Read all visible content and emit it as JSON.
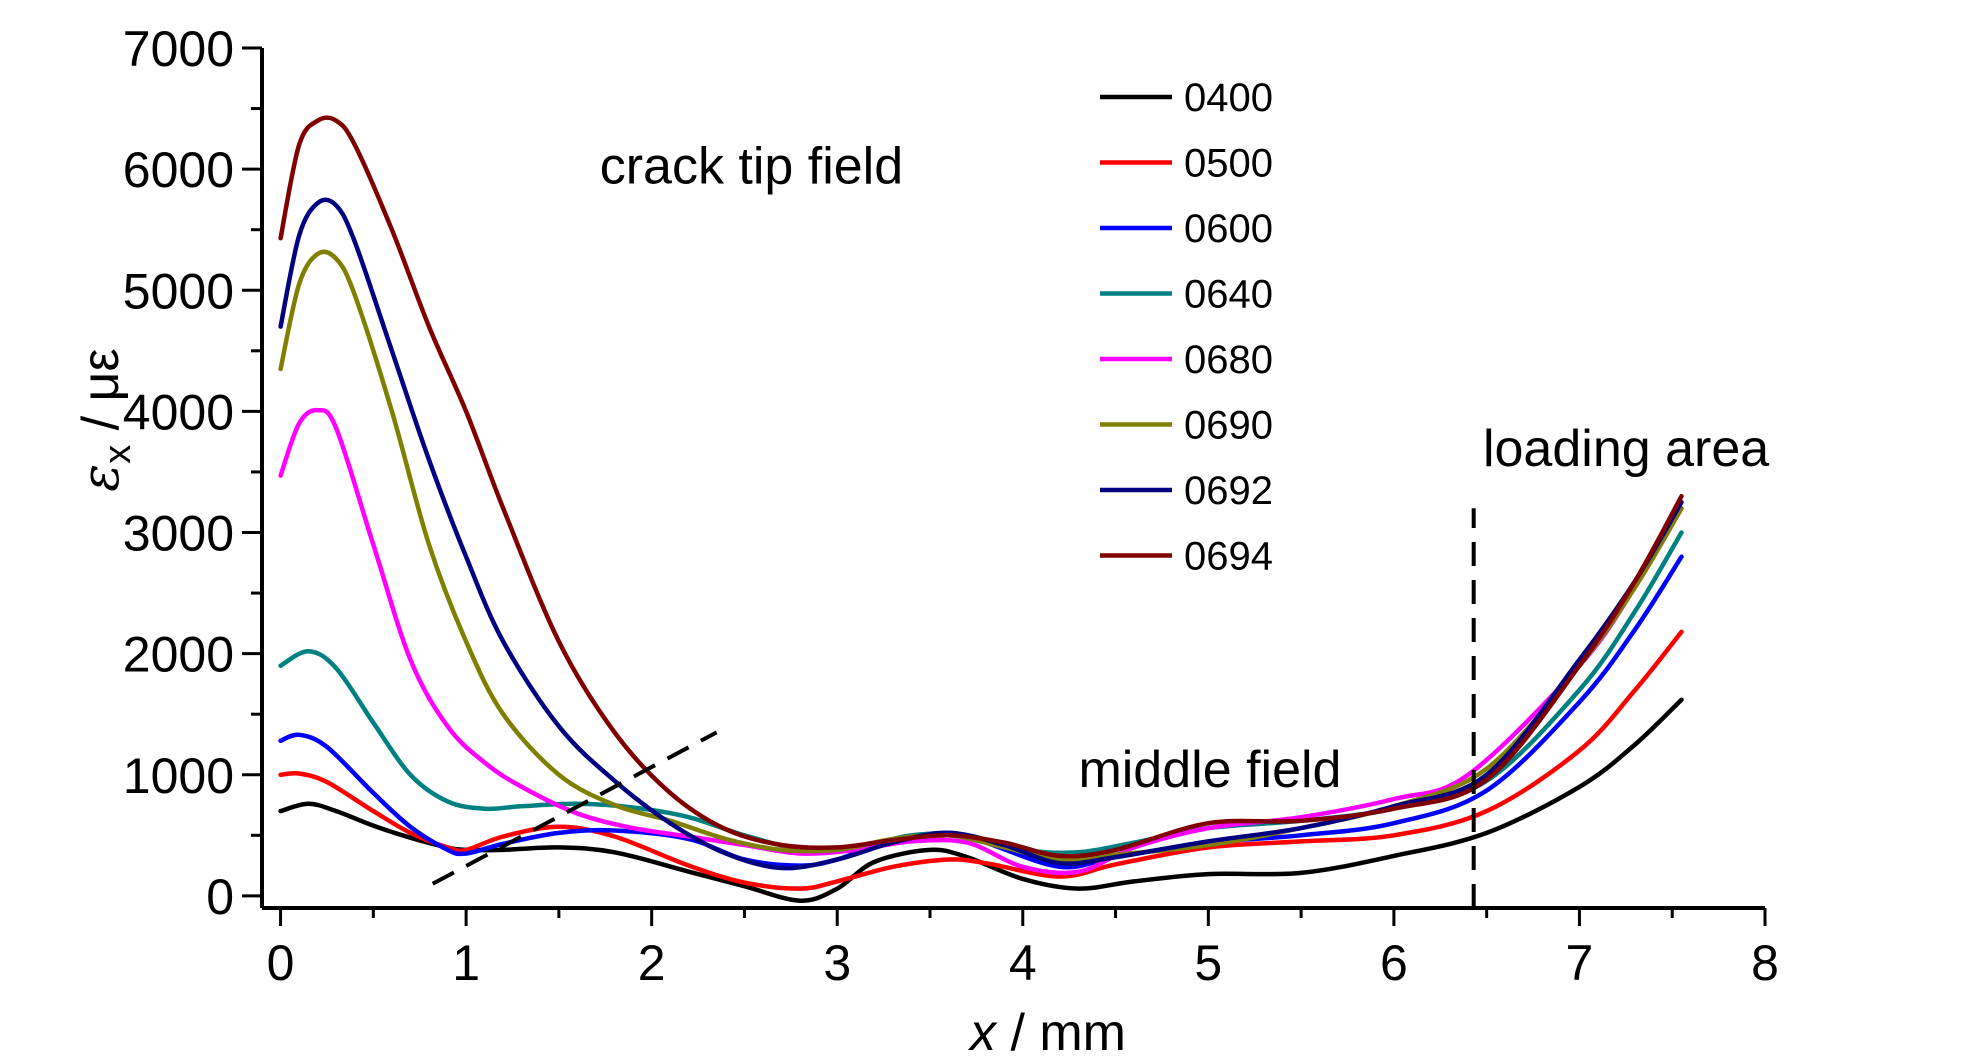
{
  "chart_data": {
    "type": "line",
    "xlabel": "x / mm",
    "xlabel_var": "x",
    "xlabel_unit": " / mm",
    "ylabel": "εx / με",
    "ylabel_var": "ε",
    "ylabel_sub": "x",
    "ylabel_unit": " / με",
    "xlim": [
      -0.1,
      8
    ],
    "ylim": [
      -100,
      7000
    ],
    "xticks": [
      0,
      1,
      2,
      3,
      4,
      5,
      6,
      7,
      8
    ],
    "xtick_labels": [
      "0",
      "1",
      "2",
      "3",
      "4",
      "5",
      "6",
      "7",
      "8"
    ],
    "yticks": [
      0,
      1000,
      2000,
      3000,
      4000,
      5000,
      6000,
      7000
    ],
    "ytick_labels": [
      "0",
      "1000",
      "2000",
      "3000",
      "4000",
      "5000",
      "6000",
      "7000"
    ],
    "grid": false,
    "legend_position": "top-center",
    "annotations": [
      {
        "text": "crack tip field",
        "x": 1.72,
        "y": 5880
      },
      {
        "text": "middle field",
        "x": 4.3,
        "y": 900
      },
      {
        "text": "loading area",
        "x": 6.48,
        "y": 3550
      }
    ],
    "reference_lines": [
      {
        "style": "dashed",
        "x": [
          6.43,
          6.43
        ],
        "y": [
          -100,
          3200
        ]
      },
      {
        "style": "dashed",
        "x": [
          0.82,
          2.35
        ],
        "y": [
          100,
          1350
        ]
      }
    ],
    "series": [
      {
        "name": "0400",
        "color": "#000000",
        "x": [
          0,
          0.15,
          0.3,
          0.5,
          0.7,
          0.9,
          1.0,
          1.2,
          1.5,
          1.8,
          2.2,
          2.5,
          2.8,
          3.0,
          3.2,
          3.5,
          3.7,
          4.0,
          4.3,
          4.6,
          5.0,
          5.5,
          6.0,
          6.5,
          7.0,
          7.3,
          7.55
        ],
        "y": [
          700,
          760,
          700,
          580,
          480,
          400,
          380,
          380,
          400,
          360,
          200,
          80,
          -40,
          60,
          280,
          380,
          320,
          140,
          60,
          120,
          180,
          190,
          330,
          520,
          900,
          1250,
          1620
        ]
      },
      {
        "name": "0500",
        "color": "#ff0000",
        "x": [
          0,
          0.1,
          0.25,
          0.5,
          0.7,
          0.9,
          1.0,
          1.2,
          1.5,
          1.8,
          2.2,
          2.5,
          2.8,
          3.0,
          3.3,
          3.6,
          3.8,
          4.2,
          4.5,
          5.0,
          5.5,
          6.0,
          6.5,
          7.0,
          7.3,
          7.55
        ],
        "y": [
          1000,
          1010,
          940,
          700,
          520,
          400,
          380,
          490,
          570,
          490,
          250,
          110,
          60,
          120,
          240,
          300,
          270,
          160,
          260,
          400,
          450,
          500,
          700,
          1200,
          1700,
          2180
        ]
      },
      {
        "name": "0600",
        "color": "#0000ff",
        "x": [
          0,
          0.1,
          0.25,
          0.5,
          0.7,
          0.9,
          1.0,
          1.2,
          1.5,
          1.8,
          2.2,
          2.5,
          2.8,
          3.0,
          3.3,
          3.6,
          3.8,
          4.2,
          4.5,
          5.0,
          5.5,
          6.0,
          6.5,
          7.0,
          7.3,
          7.55
        ],
        "y": [
          1280,
          1330,
          1230,
          850,
          570,
          380,
          350,
          430,
          520,
          540,
          470,
          300,
          250,
          300,
          460,
          520,
          440,
          240,
          320,
          440,
          500,
          600,
          870,
          1600,
          2200,
          2800
        ]
      },
      {
        "name": "0640",
        "color": "#008080",
        "x": [
          0,
          0.15,
          0.3,
          0.5,
          0.7,
          0.9,
          1.1,
          1.3,
          1.6,
          1.9,
          2.2,
          2.5,
          2.8,
          3.1,
          3.4,
          3.7,
          4.0,
          4.3,
          4.6,
          5.0,
          5.5,
          6.0,
          6.5,
          7.0,
          7.3,
          7.55
        ],
        "y": [
          1900,
          2020,
          1880,
          1430,
          1000,
          780,
          720,
          740,
          760,
          730,
          650,
          500,
          390,
          400,
          500,
          500,
          380,
          360,
          440,
          560,
          620,
          720,
          950,
          1700,
          2350,
          3000
        ]
      },
      {
        "name": "0680",
        "color": "#ff00ff",
        "x": [
          0,
          0.1,
          0.2,
          0.3,
          0.5,
          0.7,
          0.9,
          1.1,
          1.3,
          1.6,
          1.9,
          2.2,
          2.5,
          2.8,
          3.1,
          3.4,
          3.7,
          4.0,
          4.3,
          4.6,
          5.0,
          5.5,
          6.0,
          6.4,
          7.0,
          7.3,
          7.55
        ],
        "y": [
          3470,
          3900,
          4010,
          3860,
          2900,
          1950,
          1400,
          1100,
          900,
          680,
          560,
          490,
          420,
          350,
          380,
          450,
          440,
          240,
          200,
          400,
          560,
          650,
          800,
          1000,
          1900,
          2550,
          3200
        ]
      },
      {
        "name": "0690",
        "color": "#808000",
        "x": [
          0,
          0.1,
          0.2,
          0.3,
          0.4,
          0.6,
          0.8,
          1.0,
          1.2,
          1.5,
          1.8,
          2.1,
          2.4,
          2.7,
          3.0,
          3.3,
          3.6,
          3.9,
          4.2,
          4.5,
          5.0,
          5.5,
          6.0,
          6.5,
          7.0,
          7.3,
          7.55
        ],
        "y": [
          4350,
          5050,
          5300,
          5260,
          4960,
          4000,
          2900,
          2100,
          1500,
          1000,
          750,
          620,
          470,
          380,
          380,
          470,
          500,
          400,
          300,
          340,
          420,
          560,
          740,
          1050,
          1900,
          2550,
          3200
        ]
      },
      {
        "name": "0692",
        "color": "#000080",
        "x": [
          0,
          0.1,
          0.2,
          0.3,
          0.4,
          0.6,
          0.8,
          1.0,
          1.2,
          1.5,
          1.8,
          2.1,
          2.4,
          2.7,
          3.0,
          3.3,
          3.6,
          3.9,
          4.2,
          4.5,
          5.0,
          5.5,
          6.0,
          6.5,
          7.0,
          7.3,
          7.55
        ],
        "y": [
          4700,
          5450,
          5720,
          5700,
          5400,
          4500,
          3600,
          2800,
          2100,
          1400,
          950,
          600,
          350,
          230,
          300,
          440,
          520,
          420,
          270,
          320,
          450,
          560,
          740,
          1000,
          1950,
          2600,
          3250
        ]
      },
      {
        "name": "0694",
        "color": "#800000",
        "x": [
          0,
          0.1,
          0.2,
          0.3,
          0.4,
          0.6,
          0.8,
          1.0,
          1.2,
          1.5,
          1.8,
          2.1,
          2.4,
          2.7,
          3.0,
          3.3,
          3.6,
          3.9,
          4.2,
          4.5,
          5.0,
          5.5,
          6.0,
          6.5,
          7.0,
          7.3,
          7.55
        ],
        "y": [
          5430,
          6200,
          6400,
          6400,
          6200,
          5500,
          4700,
          4000,
          3200,
          2100,
          1350,
          850,
          550,
          420,
          400,
          460,
          500,
          440,
          330,
          380,
          600,
          620,
          720,
          960,
          1900,
          2600,
          3300
        ]
      }
    ]
  }
}
